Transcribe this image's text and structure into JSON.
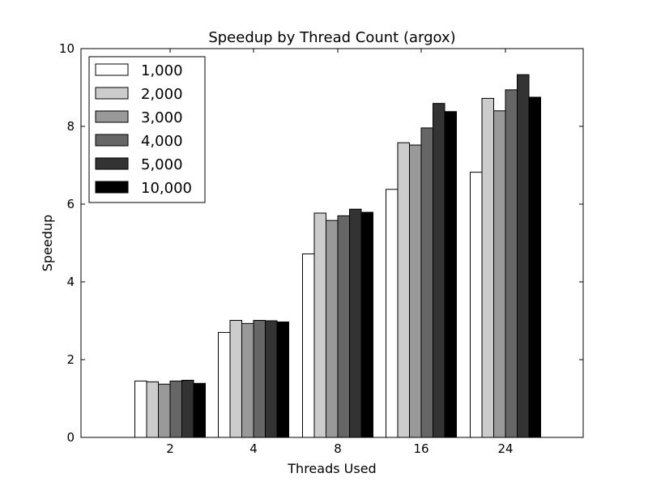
{
  "chart_data": {
    "type": "bar",
    "title": "Speedup by Thread Count (argox)",
    "xlabel": "Threads Used",
    "ylabel": "Speedup",
    "ylim": [
      0,
      10
    ],
    "yticks": [
      "0",
      "2",
      "4",
      "6",
      "8",
      "10"
    ],
    "yticks_values": [
      0,
      2,
      4,
      6,
      8,
      10
    ],
    "categories": [
      "2",
      "4",
      "8",
      "16",
      "24"
    ],
    "legend_position": "top-left",
    "grid": false,
    "series": [
      {
        "name": "1,000",
        "color": "#ffffff",
        "values": [
          1.45,
          2.7,
          4.72,
          6.38,
          6.82
        ]
      },
      {
        "name": "2,000",
        "color": "#cccccc",
        "values": [
          1.43,
          3.01,
          5.77,
          7.58,
          8.72
        ]
      },
      {
        "name": "3,000",
        "color": "#999999",
        "values": [
          1.37,
          2.93,
          5.58,
          7.52,
          8.4
        ]
      },
      {
        "name": "4,000",
        "color": "#666666",
        "values": [
          1.45,
          3.01,
          5.7,
          7.96,
          8.94
        ]
      },
      {
        "name": "5,000",
        "color": "#333333",
        "values": [
          1.47,
          3.0,
          5.87,
          8.59,
          9.33
        ]
      },
      {
        "name": "10,000",
        "color": "#000000",
        "values": [
          1.39,
          2.97,
          5.79,
          8.38,
          8.75
        ]
      }
    ]
  }
}
